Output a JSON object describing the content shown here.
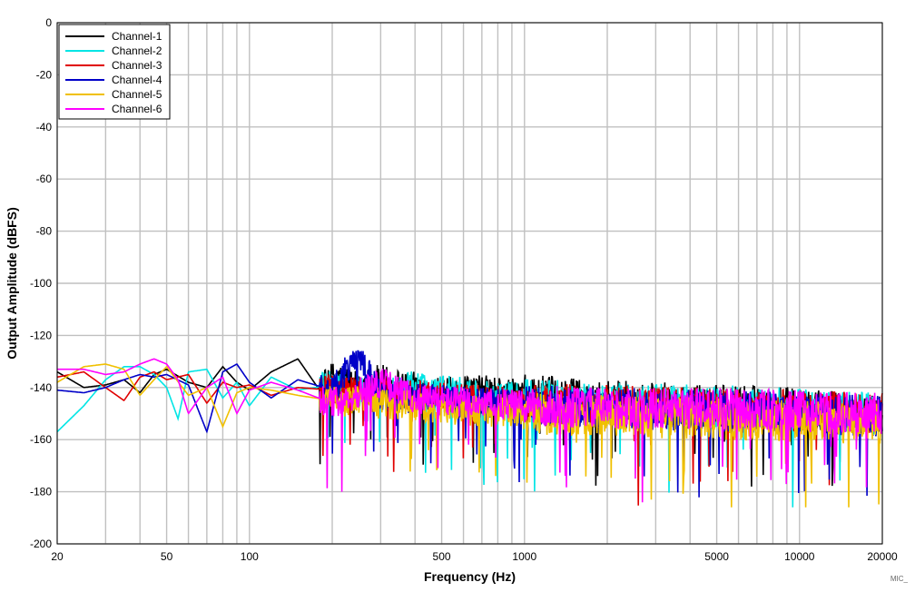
{
  "chart_data": {
    "type": "line",
    "title": "",
    "xlabel": "Frequency (Hz)",
    "ylabel": "Output Amplitude (dBFS)",
    "x_scale": "log",
    "xlim": [
      20,
      20000
    ],
    "ylim": [
      -200,
      0
    ],
    "x_ticks": [
      "20",
      "50",
      "100",
      "500",
      "1000",
      "5000",
      "10000",
      "20000"
    ],
    "x_tick_values": [
      20,
      50,
      100,
      500,
      1000,
      5000,
      10000,
      20000
    ],
    "y_ticks": [
      "0",
      "-20",
      "-40",
      "-60",
      "-80",
      "-100",
      "-120",
      "-140",
      "-160",
      "-180",
      "-200"
    ],
    "y_tick_values": [
      0,
      -20,
      -40,
      -60,
      -80,
      -100,
      -120,
      -140,
      -160,
      -180,
      -200
    ],
    "grid": true,
    "legend_position": "top-left",
    "footnote": "MIC_",
    "series": [
      {
        "name": "Channel-1",
        "color": "#000000",
        "x": [
          20,
          25,
          30,
          35,
          40,
          45,
          50,
          60,
          70,
          80,
          90,
          100,
          120,
          150,
          180,
          200,
          250,
          300,
          400,
          500,
          700,
          1000,
          2000,
          5000,
          10000,
          20000
        ],
        "y": [
          -134,
          -140,
          -139,
          -137,
          -142,
          -135,
          -133,
          -138,
          -140,
          -132,
          -138,
          -141,
          -134,
          -129,
          -141,
          -136,
          -139,
          -137,
          -140,
          -142,
          -141,
          -143,
          -145,
          -147,
          -148,
          -151
        ]
      },
      {
        "name": "Channel-2",
        "color": "#00e5e5",
        "x": [
          20,
          25,
          30,
          35,
          40,
          45,
          50,
          55,
          60,
          70,
          80,
          90,
          100,
          120,
          150,
          200,
          300,
          400,
          500,
          700,
          1000,
          2000,
          5000,
          10000,
          20000
        ],
        "y": [
          -157,
          -147,
          -137,
          -132,
          -132,
          -135,
          -140,
          -152,
          -134,
          -133,
          -144,
          -138,
          -147,
          -136,
          -141,
          -139,
          -143,
          -139,
          -141,
          -143,
          -144,
          -146,
          -147,
          -148,
          -150
        ]
      },
      {
        "name": "Channel-3",
        "color": "#e00000",
        "x": [
          20,
          25,
          30,
          35,
          40,
          45,
          50,
          60,
          70,
          80,
          90,
          100,
          120,
          150,
          200,
          300,
          400,
          500,
          700,
          1000,
          2000,
          5000,
          10000,
          20000
        ],
        "y": [
          -136,
          -134,
          -140,
          -145,
          -136,
          -134,
          -137,
          -135,
          -146,
          -138,
          -140,
          -139,
          -143,
          -140,
          -141,
          -142,
          -143,
          -144,
          -145,
          -146,
          -147,
          -148,
          -149,
          -150
        ]
      },
      {
        "name": "Channel-4",
        "color": "#0000c8",
        "x": [
          20,
          25,
          30,
          35,
          40,
          45,
          50,
          60,
          70,
          80,
          90,
          100,
          120,
          150,
          200,
          250,
          300,
          400,
          500,
          700,
          1000,
          2000,
          5000,
          10000,
          20000
        ],
        "y": [
          -141,
          -142,
          -140,
          -137,
          -135,
          -136,
          -135,
          -139,
          -157,
          -134,
          -131,
          -138,
          -144,
          -137,
          -141,
          -127,
          -143,
          -144,
          -145,
          -146,
          -147,
          -148,
          -149,
          -150,
          -151
        ]
      },
      {
        "name": "Channel-5",
        "color": "#f0c000",
        "x": [
          20,
          25,
          30,
          35,
          40,
          45,
          50,
          60,
          70,
          80,
          90,
          100,
          120,
          150,
          200,
          300,
          400,
          500,
          700,
          1000,
          2000,
          5000,
          10000,
          20000
        ],
        "y": [
          -138,
          -132,
          -131,
          -133,
          -143,
          -137,
          -132,
          -143,
          -140,
          -155,
          -142,
          -140,
          -141,
          -143,
          -145,
          -146,
          -147,
          -148,
          -149,
          -150,
          -151,
          -152,
          -153,
          -154
        ]
      },
      {
        "name": "Channel-6",
        "color": "#ff00ff",
        "x": [
          20,
          25,
          30,
          35,
          40,
          45,
          50,
          55,
          60,
          70,
          80,
          90,
          100,
          120,
          150,
          200,
          250,
          300,
          400,
          500,
          700,
          1000,
          2000,
          5000,
          10000,
          20000
        ],
        "y": [
          -133,
          -133,
          -135,
          -134,
          -131,
          -129,
          -131,
          -137,
          -150,
          -140,
          -136,
          -150,
          -141,
          -138,
          -141,
          -146,
          -142,
          -138,
          -144,
          -145,
          -146,
          -147,
          -148,
          -148,
          -149,
          -150
        ]
      }
    ]
  }
}
